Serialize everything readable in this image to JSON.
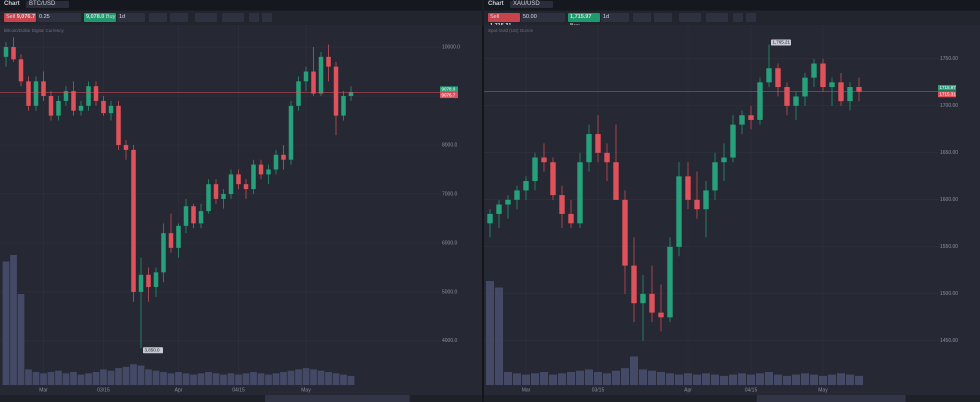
{
  "toolbars": [
    {
      "tab": "Chart",
      "symbol": "BTC/USD",
      "sell_label": "Sell",
      "sell": "9,076.7",
      "quantity": "0.25",
      "buy": "9,078.0",
      "buy_label": "Buy",
      "interval": "1d"
    },
    {
      "tab": "Chart",
      "symbol": "XAU/USD",
      "sell_label": "Sell",
      "sell": "1,715.31",
      "quantity": "50.00",
      "buy": "1,715.97",
      "buy_label": "Buy",
      "interval": "1d"
    }
  ],
  "chart_data": [
    {
      "type": "candlestick",
      "subtitle": "Bitcoin/Dollar Digital Currency",
      "up_color": "#26a17b",
      "down_color": "#e0525b",
      "categories": [
        null,
        null,
        null,
        null,
        null,
        "Mar",
        null,
        null,
        null,
        null,
        null,
        null,
        null,
        "03/15",
        null,
        null,
        null,
        null,
        null,
        null,
        null,
        null,
        null,
        "Apr",
        null,
        null,
        null,
        null,
        null,
        null,
        null,
        "04/15",
        null,
        null,
        null,
        null,
        null,
        null,
        null,
        null,
        "May",
        null,
        null,
        null,
        null,
        null,
        null
      ],
      "values": [
        [
          9800,
          10100,
          9600,
          10000
        ],
        [
          10000,
          10200,
          9700,
          9750
        ],
        [
          9750,
          9850,
          9200,
          9300
        ],
        [
          9300,
          9400,
          8700,
          8800
        ],
        [
          8800,
          9400,
          8700,
          9300
        ],
        [
          9300,
          9500,
          8900,
          9000
        ],
        [
          9000,
          9100,
          8500,
          8600
        ],
        [
          8600,
          9000,
          8500,
          8900
        ],
        [
          8900,
          9200,
          8800,
          9100
        ],
        [
          9100,
          9300,
          8600,
          8700
        ],
        [
          8700,
          8900,
          8600,
          8800
        ],
        [
          8800,
          9300,
          8700,
          9200
        ],
        [
          9200,
          9300,
          8800,
          8900
        ],
        [
          8900,
          9000,
          8600,
          8650
        ],
        [
          8650,
          8900,
          8500,
          8800
        ],
        [
          8800,
          8900,
          7900,
          8000
        ],
        [
          8000,
          8100,
          7700,
          7900
        ],
        [
          7900,
          8000,
          4800,
          5000
        ],
        [
          5000,
          5700,
          3850,
          5350
        ],
        [
          5350,
          5500,
          4800,
          5100
        ],
        [
          5100,
          5500,
          4900,
          5400
        ],
        [
          5400,
          6400,
          5200,
          6200
        ],
        [
          6200,
          6600,
          5800,
          5900
        ],
        [
          5900,
          6400,
          5700,
          6350
        ],
        [
          6350,
          6900,
          6200,
          6750
        ],
        [
          6750,
          6800,
          6300,
          6400
        ],
        [
          6400,
          6800,
          6300,
          6650
        ],
        [
          6650,
          7300,
          6600,
          7200
        ],
        [
          7200,
          7300,
          6800,
          6900
        ],
        [
          6900,
          7100,
          6700,
          7000
        ],
        [
          7000,
          7500,
          6900,
          7400
        ],
        [
          7400,
          7500,
          7100,
          7200
        ],
        [
          7200,
          7300,
          6900,
          7100
        ],
        [
          7100,
          7700,
          7000,
          7600
        ],
        [
          7600,
          7700,
          7300,
          7400
        ],
        [
          7400,
          7600,
          7200,
          7500
        ],
        [
          7500,
          7900,
          7400,
          7800
        ],
        [
          7800,
          8000,
          7500,
          7700
        ],
        [
          7700,
          8900,
          7600,
          8800
        ],
        [
          8800,
          9400,
          8700,
          9300
        ],
        [
          9300,
          9600,
          9100,
          9500
        ],
        [
          9500,
          10000,
          9000,
          9050
        ],
        [
          9050,
          9900,
          9000,
          9800
        ],
        [
          9800,
          10050,
          9300,
          9600
        ],
        [
          9600,
          9700,
          8200,
          8600
        ],
        [
          8600,
          9100,
          8500,
          9000
        ],
        [
          9000,
          9200,
          8900,
          9077
        ]
      ],
      "volume": [
        95,
        100,
        70,
        12,
        10,
        9,
        10,
        11,
        9,
        10,
        8,
        9,
        10,
        12,
        11,
        13,
        14,
        16,
        15,
        12,
        11,
        10,
        9,
        10,
        9,
        8,
        9,
        10,
        9,
        8,
        9,
        8,
        9,
        10,
        9,
        8,
        9,
        10,
        11,
        12,
        13,
        12,
        11,
        10,
        9,
        8,
        7
      ],
      "vlim": [
        0,
        100
      ],
      "ylim": [
        3100,
        10450
      ],
      "yticks": [
        {
          "value": 4000,
          "label": "4000.0"
        },
        {
          "value": 5000,
          "label": "5000.0"
        },
        {
          "value": 6000,
          "label": "6000.0"
        },
        {
          "value": 7000,
          "label": "7000.0"
        },
        {
          "value": 8000,
          "label": "8000.0"
        },
        {
          "value": 9000,
          "label": "9000.0"
        },
        {
          "value": 10000,
          "label": "10000.0"
        }
      ],
      "price_marks": [
        {
          "value": 9078.0,
          "label": "9078.0",
          "color": "#26a17b"
        },
        {
          "value": 9076.7,
          "label": "9076.7",
          "color": "#e0525b"
        }
      ],
      "low_label": "3,850.0"
    },
    {
      "type": "candlestick",
      "subtitle": "Spot Gold (US) Ounce",
      "up_color": "#26a17b",
      "down_color": "#e0525b",
      "categories": [
        null,
        null,
        null,
        null,
        "Mar",
        null,
        null,
        null,
        null,
        null,
        null,
        null,
        "03/15",
        null,
        null,
        null,
        null,
        null,
        null,
        null,
        null,
        null,
        "Apr",
        null,
        null,
        null,
        null,
        null,
        null,
        "04/15",
        null,
        null,
        null,
        null,
        null,
        null,
        null,
        "May",
        null,
        null,
        null,
        null
      ],
      "values": [
        [
          1575,
          1590,
          1560,
          1585
        ],
        [
          1585,
          1600,
          1570,
          1595
        ],
        [
          1595,
          1605,
          1580,
          1600
        ],
        [
          1600,
          1615,
          1590,
          1610
        ],
        [
          1610,
          1625,
          1600,
          1620
        ],
        [
          1620,
          1650,
          1610,
          1645
        ],
        [
          1645,
          1660,
          1630,
          1640
        ],
        [
          1640,
          1645,
          1600,
          1605
        ],
        [
          1605,
          1615,
          1570,
          1585
        ],
        [
          1585,
          1600,
          1570,
          1575
        ],
        [
          1575,
          1650,
          1570,
          1640
        ],
        [
          1640,
          1680,
          1630,
          1670
        ],
        [
          1670,
          1690,
          1640,
          1650
        ],
        [
          1650,
          1660,
          1620,
          1640
        ],
        [
          1640,
          1680,
          1600,
          1600
        ],
        [
          1600,
          1610,
          1500,
          1530
        ],
        [
          1530,
          1560,
          1470,
          1490
        ],
        [
          1490,
          1520,
          1450,
          1500
        ],
        [
          1500,
          1530,
          1470,
          1480
        ],
        [
          1480,
          1510,
          1460,
          1475
        ],
        [
          1475,
          1560,
          1470,
          1550
        ],
        [
          1550,
          1640,
          1540,
          1625
        ],
        [
          1625,
          1640,
          1590,
          1600
        ],
        [
          1600,
          1630,
          1580,
          1590
        ],
        [
          1590,
          1620,
          1560,
          1610
        ],
        [
          1610,
          1650,
          1600,
          1640
        ],
        [
          1640,
          1660,
          1620,
          1645
        ],
        [
          1645,
          1690,
          1640,
          1680
        ],
        [
          1680,
          1695,
          1670,
          1690
        ],
        [
          1690,
          1700,
          1675,
          1685
        ],
        [
          1685,
          1730,
          1680,
          1725
        ],
        [
          1725,
          1765.21,
          1720,
          1740
        ],
        [
          1740,
          1745,
          1710,
          1720
        ],
        [
          1720,
          1725,
          1690,
          1700
        ],
        [
          1700,
          1715,
          1685,
          1710
        ],
        [
          1710,
          1735,
          1700,
          1730
        ],
        [
          1730,
          1750,
          1720,
          1745
        ],
        [
          1745,
          1750,
          1715,
          1720
        ],
        [
          1720,
          1730,
          1700,
          1725
        ],
        [
          1725,
          1735,
          1700,
          1705
        ],
        [
          1705,
          1725,
          1695,
          1720
        ],
        [
          1720,
          1730,
          1705,
          1715
        ]
      ],
      "volume": [
        80,
        75,
        10,
        9,
        8,
        9,
        10,
        8,
        9,
        10,
        11,
        12,
        10,
        9,
        11,
        13,
        22,
        12,
        11,
        10,
        9,
        8,
        9,
        8,
        9,
        8,
        7,
        8,
        9,
        8,
        9,
        10,
        8,
        7,
        8,
        9,
        8,
        7,
        8,
        9,
        8,
        7
      ],
      "vlim": [
        0,
        100
      ],
      "ylim": [
        1403,
        1786
      ],
      "yticks": [
        {
          "value": 1450,
          "label": "1450.00"
        },
        {
          "value": 1500,
          "label": "1500.00"
        },
        {
          "value": 1550,
          "label": "1550.00"
        },
        {
          "value": 1600,
          "label": "1600.00"
        },
        {
          "value": 1650,
          "label": "1650.00"
        },
        {
          "value": 1700,
          "label": "1700.00"
        },
        {
          "value": 1750,
          "label": "1750.00"
        }
      ],
      "price_marks": [
        {
          "value": 1715.97,
          "label": "1715.97",
          "color": "#26a17b"
        },
        {
          "value": 1715.31,
          "label": "1715.31",
          "color": "#e0525b"
        }
      ],
      "high_label": "1,765.21"
    }
  ]
}
